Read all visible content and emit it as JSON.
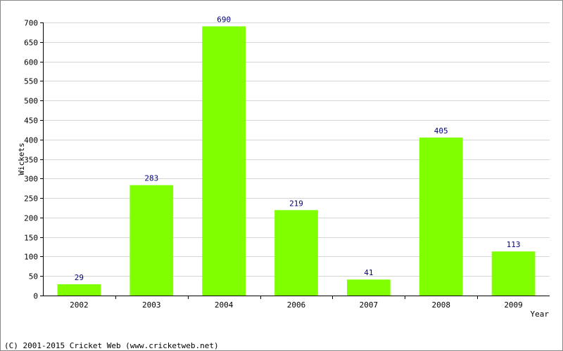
{
  "chart_data": {
    "type": "bar",
    "title": "",
    "xlabel": "Year",
    "ylabel": "Wickets",
    "categories": [
      "2002",
      "2003",
      "2004",
      "2006",
      "2007",
      "2008",
      "2009"
    ],
    "values": [
      29,
      283,
      690,
      219,
      41,
      405,
      113
    ],
    "data_labels": [
      "29",
      "283",
      "690",
      "219",
      "41",
      "405",
      "113"
    ],
    "ylim": [
      0,
      700
    ],
    "y_ticks": [
      "0",
      "50",
      "100",
      "150",
      "200",
      "250",
      "300",
      "350",
      "400",
      "450",
      "500",
      "550",
      "600",
      "650",
      "700"
    ],
    "grid": true,
    "legend": "none"
  },
  "colors": {
    "bar": "#7fff00",
    "data_label": "#000080",
    "grid": "#d6d6d6",
    "axis": "#000000"
  },
  "footer": {
    "copyright": "(C) 2001-2015 Cricket Web (www.cricketweb.net)"
  }
}
